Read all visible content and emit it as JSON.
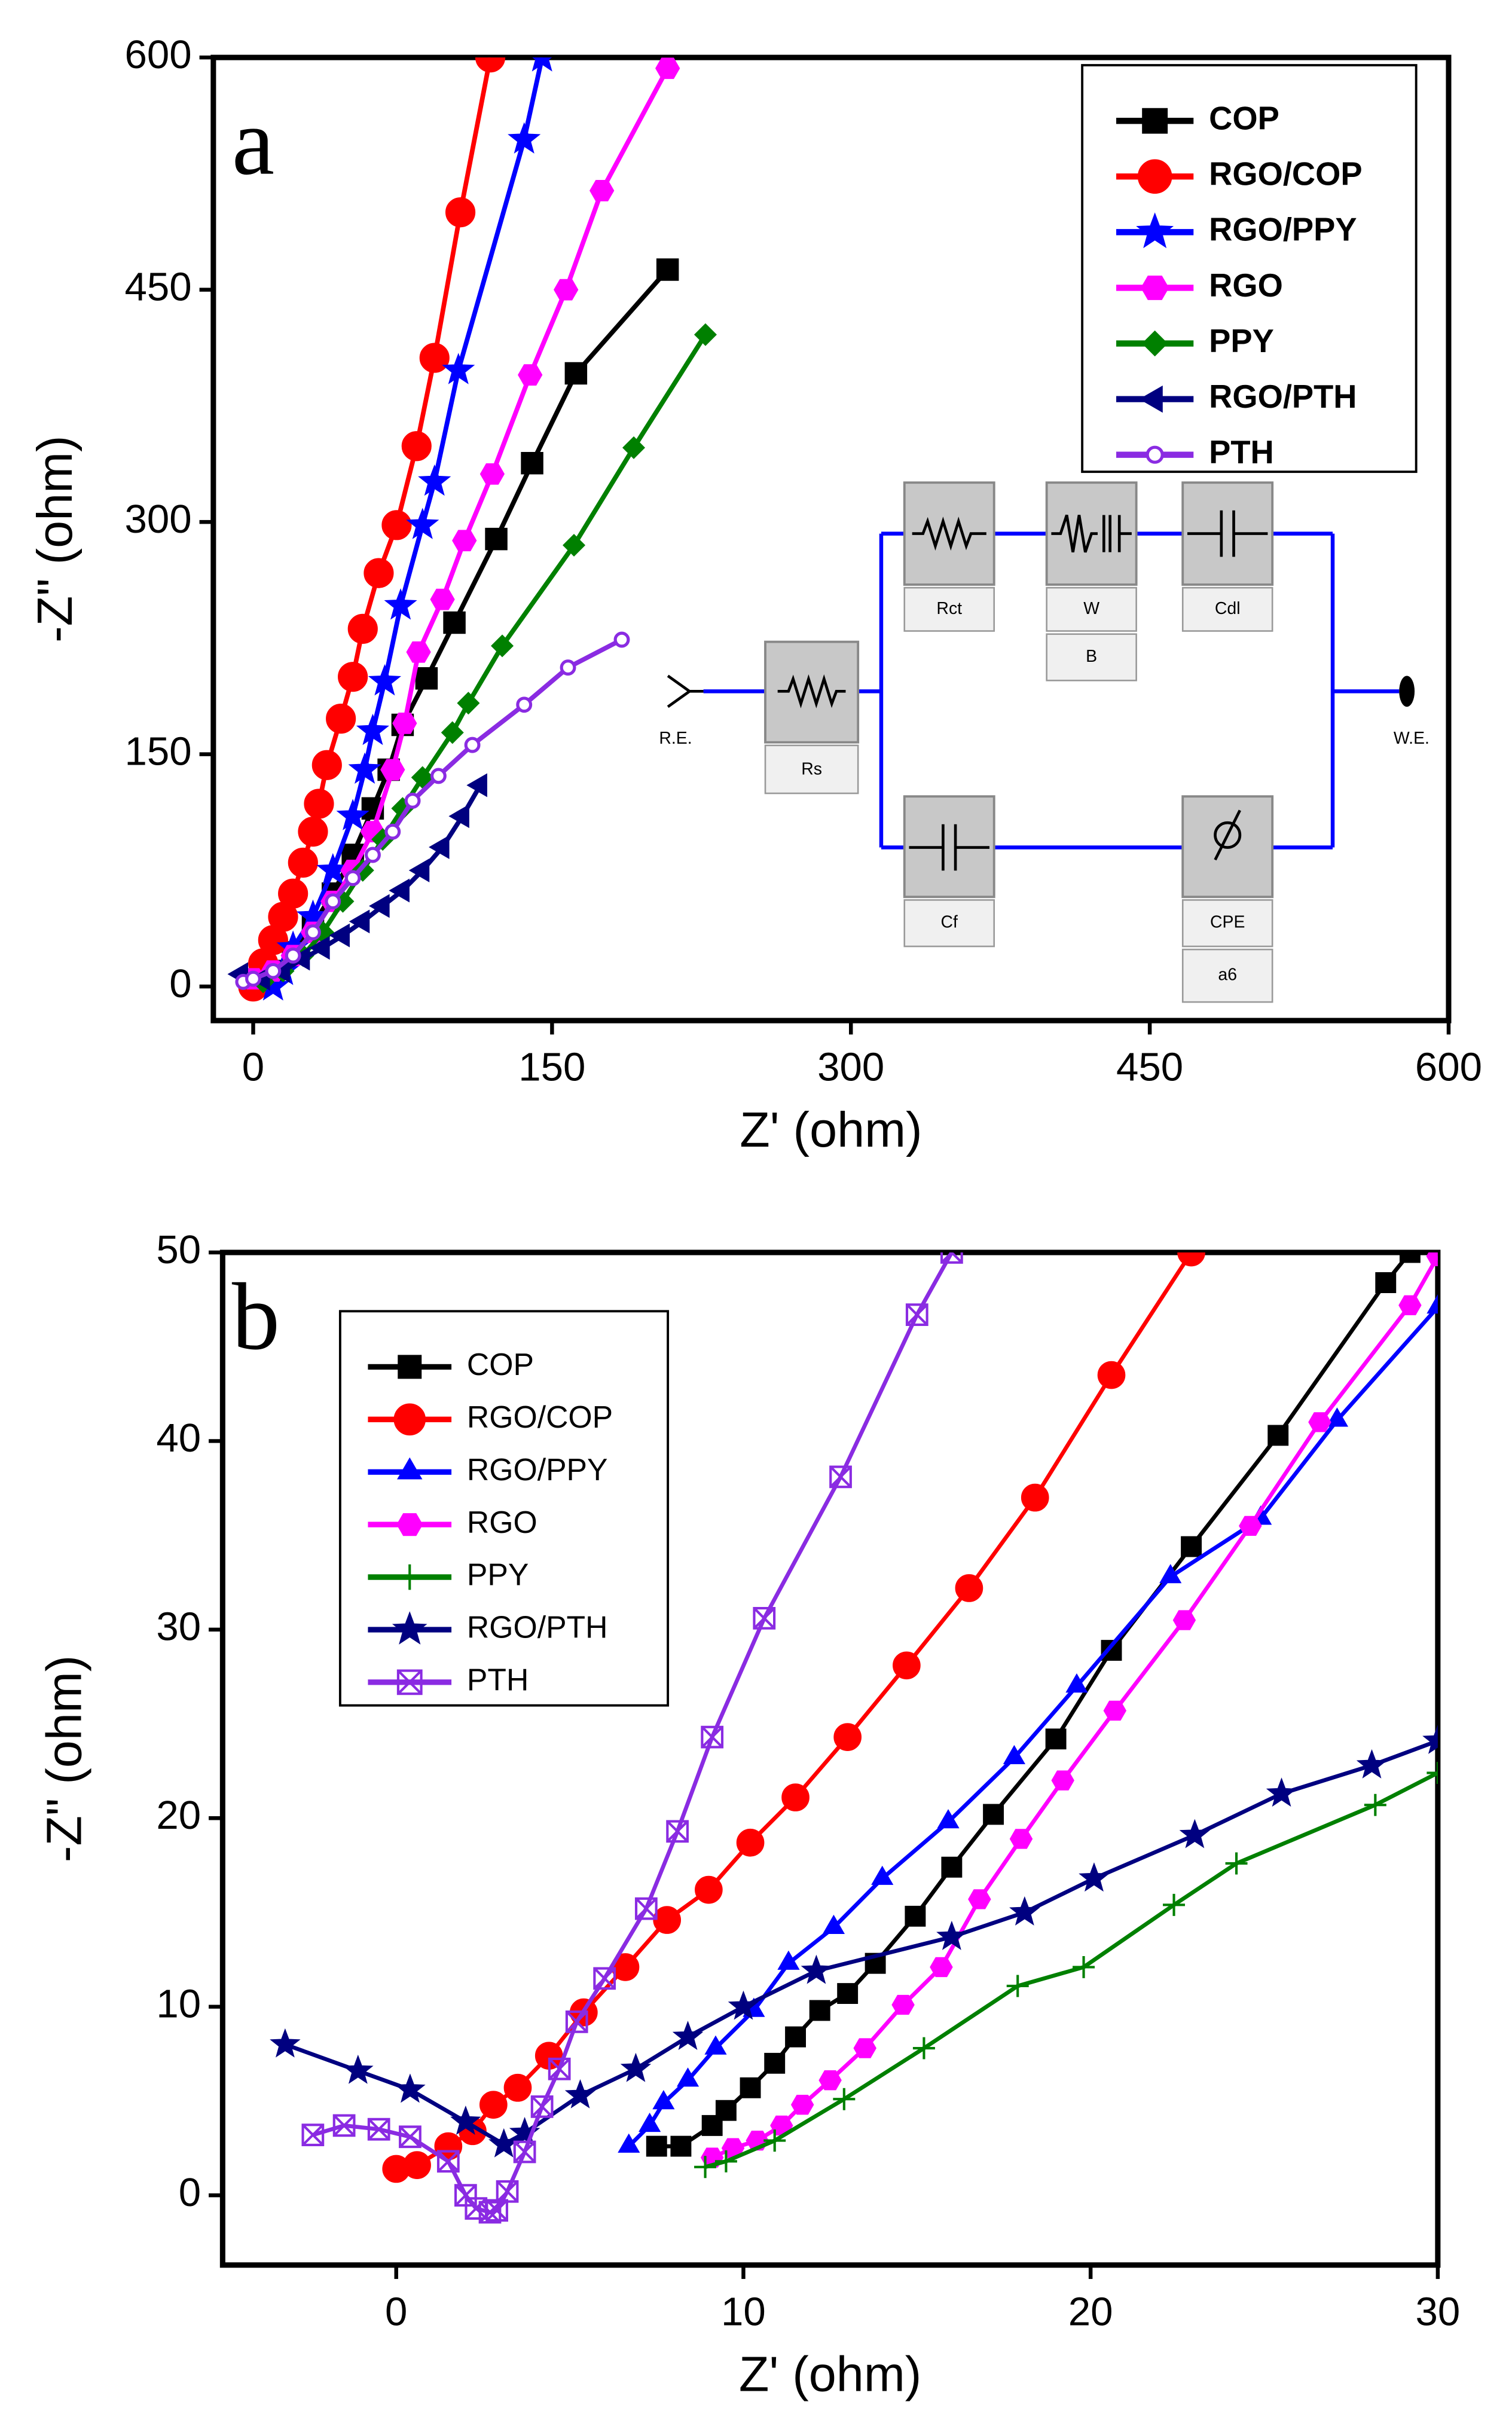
{
  "chart_data": [
    {
      "type": "line",
      "panel_label": "a",
      "xlabel": "Z' (ohm)",
      "ylabel": "-Z\" (ohm)",
      "xlim": [
        -20,
        600
      ],
      "ylim": [
        -22,
        600
      ],
      "xticks": [
        0,
        150,
        300,
        450,
        600
      ],
      "yticks": [
        0,
        150,
        300,
        450,
        600
      ],
      "legend": "upper right",
      "inset_labels": [
        "R.E.",
        "Rs",
        "Rct",
        "W",
        "B",
        "Cdl",
        "Cf",
        "CPE",
        "a6",
        "W.E."
      ],
      "series": [
        {
          "name": "COP",
          "color": "#000000",
          "marker": "square",
          "x": [
            0,
            10,
            20,
            30,
            40,
            50,
            60,
            68,
            75,
            87,
            101,
            122,
            140,
            162,
            208
          ],
          "values": [
            2,
            10,
            22,
            40,
            60,
            85,
            115,
            140,
            169,
            199,
            235,
            289,
            338,
            396,
            463
          ]
        },
        {
          "name": "RGO/COP",
          "color": "#ff0000",
          "marker": "circle",
          "x": [
            0,
            5,
            10,
            15,
            20,
            25,
            30,
            33,
            37,
            44,
            50,
            55,
            63,
            72,
            82,
            91,
            104,
            119
          ],
          "values": [
            0,
            15,
            30,
            45,
            60,
            80,
            100,
            118,
            143,
            173,
            200,
            231,
            267,
            298,
            349,
            406,
            500,
            600
          ]
        },
        {
          "name": "RGO/PPY",
          "color": "#0000ff",
          "marker": "star",
          "x": [
            10,
            15,
            20,
            30,
            40,
            50,
            56,
            60,
            66,
            74,
            85,
            91,
            103,
            136,
            145
          ],
          "values": [
            0,
            10,
            25,
            45,
            75,
            110,
            140,
            165,
            197,
            246,
            298,
            326,
            398,
            547,
            600
          ]
        },
        {
          "name": "RGO",
          "color": "#ff00ff",
          "marker": "pentagon",
          "x": [
            0,
            10,
            20,
            30,
            40,
            50,
            60,
            70,
            76,
            83,
            95,
            106,
            120,
            139,
            157,
            175,
            208
          ],
          "values": [
            5,
            10,
            20,
            35,
            55,
            75,
            100,
            140,
            170,
            216,
            250,
            288,
            331,
            395,
            450,
            514,
            593
          ]
        },
        {
          "name": "PPY",
          "color": "#008000",
          "marker": "diamond",
          "x": [
            5,
            15,
            25,
            35,
            45,
            55,
            65,
            75,
            85,
            100,
            108,
            125,
            161,
            191,
            227
          ],
          "values": [
            3,
            10,
            20,
            35,
            55,
            75,
            95,
            115,
            135,
            164,
            183,
            220,
            285,
            348,
            421
          ]
        },
        {
          "name": "RGO/PTH",
          "color": "#000080",
          "marker": "triangle-left",
          "x": [
            -6,
            5,
            15,
            25,
            35,
            45,
            55,
            65,
            75,
            85,
            95,
            105,
            114
          ],
          "values": [
            8,
            5,
            10,
            18,
            25,
            33,
            42,
            52,
            62,
            75,
            90,
            110,
            130
          ]
        },
        {
          "name": "PTH",
          "color": "#8a2be2",
          "marker": "small-circle",
          "x": [
            -5,
            0,
            10,
            20,
            30,
            40,
            50,
            60,
            70,
            80,
            93,
            110,
            136,
            158,
            185
          ],
          "values": [
            3,
            5,
            10,
            20,
            35,
            55,
            70,
            85,
            100,
            120,
            136,
            156,
            182,
            206,
            224
          ]
        }
      ]
    },
    {
      "type": "line",
      "panel_label": "b",
      "xlabel": "Z' (ohm)",
      "ylabel": "-Z\" (ohm)",
      "xlim": [
        -5,
        30
      ],
      "ylim": [
        -3.7,
        50
      ],
      "xticks": [
        0,
        10,
        20,
        30
      ],
      "yticks": [
        0,
        10,
        20,
        30,
        40,
        50
      ],
      "legend": "upper left",
      "series": [
        {
          "name": "COP",
          "color": "#000000",
          "marker": "square",
          "x": [
            7.5,
            8.2,
            9.1,
            9.5,
            10.2,
            10.9,
            11.5,
            12.2,
            13,
            13.8,
            14.95,
            16,
            17.2,
            19,
            20.6,
            22.9,
            25.4,
            28.5,
            29.2
          ],
          "values": [
            2.6,
            2.6,
            3.7,
            4.5,
            5.7,
            7,
            8.4,
            9.8,
            10.7,
            12.3,
            14.8,
            17.4,
            20.2,
            24.2,
            28.9,
            34.4,
            40.3,
            48.4,
            50
          ]
        },
        {
          "name": "RGO/COP",
          "color": "#ff0000",
          "marker": "circle",
          "x": [
            0,
            0.6,
            1.5,
            2.2,
            2.8,
            3.5,
            4.4,
            5.4,
            6.6,
            7.8,
            9,
            10.2,
            11.5,
            13,
            14.7,
            16.5,
            18.4,
            20.6,
            22.9
          ],
          "values": [
            1.4,
            1.6,
            2.6,
            3.4,
            4.8,
            5.7,
            7.4,
            9.7,
            12.1,
            14.6,
            16.2,
            18.7,
            21.1,
            24.3,
            28.1,
            32.2,
            37,
            43.5,
            50
          ]
        },
        {
          "name": "RGO/PPY",
          "color": "#0000ff",
          "marker": "triangle-up",
          "x": [
            6.7,
            7.3,
            7.7,
            8.4,
            9.2,
            10.3,
            11.3,
            12.6,
            14,
            15.9,
            17.8,
            19.6,
            22.3,
            24.9,
            27.1,
            30
          ],
          "values": [
            2.6,
            3.7,
            4.9,
            6.1,
            7.8,
            9.8,
            12.3,
            14.2,
            16.8,
            19.8,
            23.2,
            27,
            32.8,
            35.9,
            41.1,
            47.1
          ]
        },
        {
          "name": "RGO",
          "color": "#ff00ff",
          "marker": "pentagon",
          "x": [
            9.1,
            9.7,
            10.4,
            11.1,
            11.7,
            12.5,
            13.5,
            14.6,
            15.7,
            16.8,
            18,
            19.2,
            20.7,
            22.7,
            24.6,
            26.6,
            29.2,
            30
          ],
          "values": [
            2,
            2.5,
            2.9,
            3.7,
            4.8,
            6.1,
            7.8,
            10.1,
            12.1,
            15.7,
            18.9,
            22,
            25.7,
            30.5,
            35.5,
            41,
            47.2,
            49.8
          ]
        },
        {
          "name": "PPY",
          "color": "#008000",
          "marker": "plus",
          "x": [
            8.9,
            9.5,
            10.9,
            12.9,
            15.2,
            17.9,
            19.8,
            22.4,
            24.2,
            28.2,
            30
          ],
          "values": [
            1.5,
            1.8,
            2.9,
            5.1,
            7.8,
            11.1,
            12.1,
            15.4,
            17.6,
            20.7,
            22.4
          ]
        },
        {
          "name": "RGO/PTH",
          "color": "#000080",
          "marker": "star",
          "x": [
            -3.2,
            -1.1,
            0.4,
            2,
            3.1,
            3.7,
            5.3,
            6.9,
            8.4,
            10,
            12.1,
            16,
            18.1,
            20.1,
            23,
            25.5,
            28.1,
            30
          ],
          "values": [
            8,
            6.6,
            5.6,
            3.9,
            2.7,
            3.3,
            5.3,
            6.7,
            8.4,
            10,
            11.9,
            13.7,
            15,
            16.8,
            19.1,
            21.3,
            22.8,
            24.1
          ]
        },
        {
          "name": "PTH",
          "color": "#8a2be2",
          "marker": "box-x",
          "x": [
            -2.4,
            -1.5,
            -0.5,
            0.4,
            1.5,
            2,
            2.3,
            2.7,
            2.9,
            3.2,
            3.7,
            4.2,
            4.7,
            5.2,
            6,
            7.2,
            8.1,
            9.1,
            10.6,
            12.8,
            15,
            16
          ],
          "values": [
            3.2,
            3.7,
            3.5,
            3.1,
            1.8,
            0,
            -0.7,
            -0.9,
            -0.8,
            0.2,
            2.3,
            4.7,
            6.7,
            9.2,
            11.5,
            15.2,
            19.3,
            24.3,
            30.6,
            38.1,
            46.7,
            50
          ]
        }
      ]
    }
  ]
}
